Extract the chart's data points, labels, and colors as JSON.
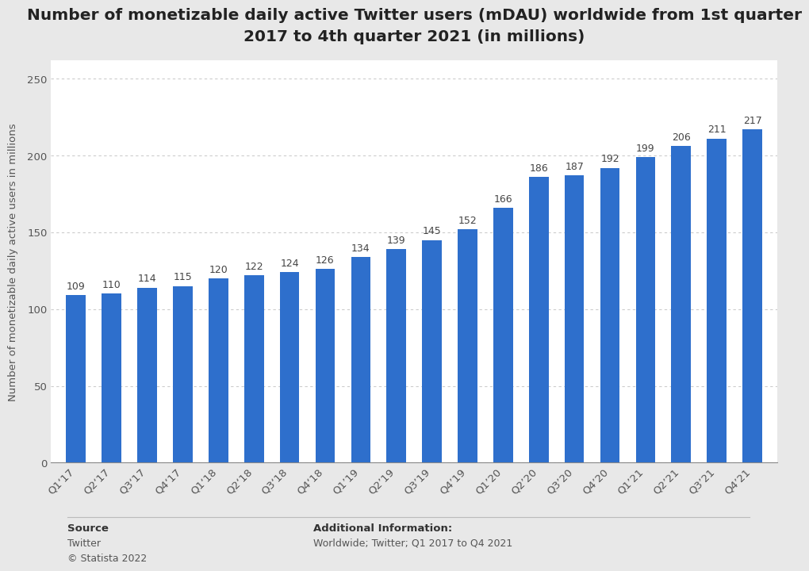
{
  "title": "Number of monetizable daily active Twitter users (mDAU) worldwide from 1st quarter\n2017 to 4th quarter 2021 (in millions)",
  "ylabel": "Number of monetizable daily active users in millions",
  "categories": [
    "Q1‘17",
    "Q2‘17",
    "Q3‘17",
    "Q4‘17",
    "Q1‘18",
    "Q2‘18",
    "Q3‘18",
    "Q4‘18",
    "Q1’19",
    "Q2’19",
    "Q3’19",
    "Q4’19",
    "Q1’20",
    "Q2’20",
    "Q3’20",
    "Q4’20",
    "Q1’21",
    "Q2’21",
    "Q3’21",
    "Q4’21"
  ],
  "values": [
    109,
    110,
    114,
    115,
    120,
    122,
    124,
    126,
    134,
    139,
    145,
    152,
    166,
    186,
    187,
    192,
    199,
    206,
    211,
    217
  ],
  "bar_color": "#2e6fcc",
  "ylim": [
    0,
    262
  ],
  "yticks": [
    0,
    50,
    100,
    150,
    200,
    250
  ],
  "outer_background_color": "#e8e8e8",
  "plot_background_color": "#ffffff",
  "grid_color": "#cccccc",
  "title_fontsize": 14.5,
  "label_fontsize": 9.5,
  "tick_fontsize": 9.5,
  "bar_label_fontsize": 9,
  "source_text_bold": "Source",
  "source_text_normal": "Twitter\n© Statista 2022",
  "additional_text_bold": "Additional Information:",
  "additional_text_normal": "Worldwide; Twitter; Q1 2017 to Q4 2021"
}
